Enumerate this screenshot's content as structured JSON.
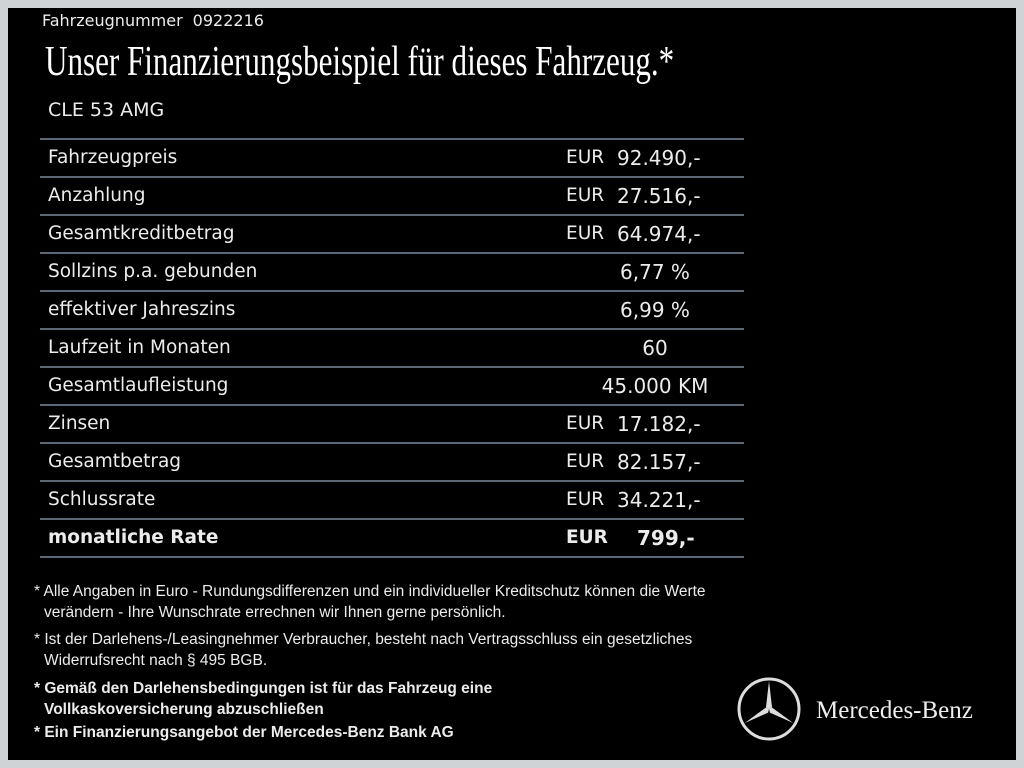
{
  "header": {
    "vehicle_number_label": "Fahrzeugnummer",
    "vehicle_number": "0922216",
    "title": "Unser Finanzierungsbeispiel für dieses Fahrzeug.*",
    "model": "CLE 53 AMG"
  },
  "table": {
    "rows": [
      [
        "Fahrzeugpreis",
        "EUR",
        "92.490,-"
      ],
      [
        "Anzahlung",
        "EUR",
        "27.516,-"
      ],
      [
        "Gesamtkreditbetrag",
        "EUR",
        "64.974,-"
      ],
      [
        "Sollzins p.a. gebunden",
        null,
        "6,77 %"
      ],
      [
        "effektiver Jahreszins",
        null,
        "6,99 %"
      ],
      [
        "Laufzeit in Monaten",
        null,
        "60"
      ],
      [
        "Gesamtlaufleistung",
        null,
        "45.000 KM"
      ],
      [
        "Zinsen",
        "EUR",
        "17.182,-"
      ],
      [
        "Gesamtbetrag",
        "EUR",
        "82.157,-"
      ],
      [
        "Schlussrate",
        "EUR",
        "34.221,-"
      ],
      [
        "monatliche Rate",
        "EUR",
        "799,-"
      ]
    ]
  },
  "footnotes": [
    "* Alle Angaben in Euro - Rundungsdifferenzen und ein individueller Kreditschutz können die Werte verändern - Ihre Wunschrate errechnen wir Ihnen gerne persönlich.",
    "* Ist der Darlehens-/Leasingnehmer Verbraucher, besteht nach Vertragsschluss ein gesetzliches Widerrufsrecht nach § 495 BGB.",
    "* Gemäß den Darlehensbedingungen ist für das Fahrzeug eine Vollkaskoversicherung abzuschließen",
    "* Ein Finanzierungsangebot der Mercedes-Benz Bank AG"
  ],
  "brand": "Mercedes-Benz"
}
